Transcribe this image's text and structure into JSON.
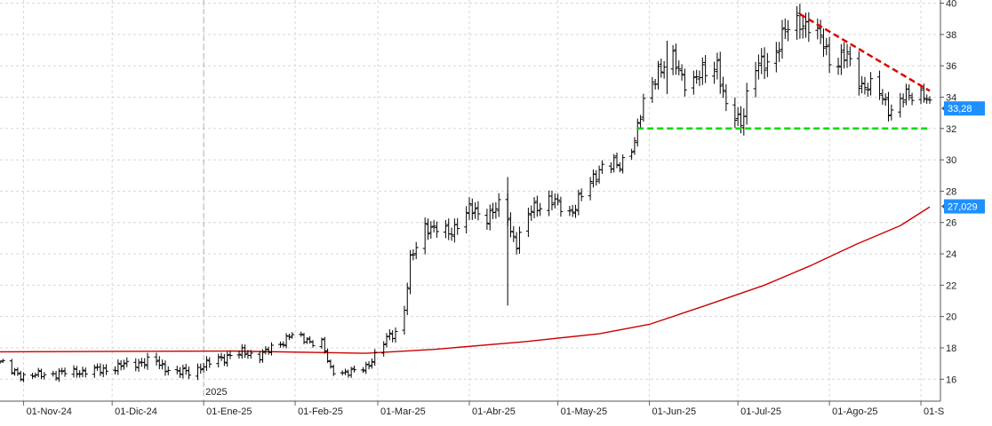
{
  "chart_data": {
    "type": "ohlc",
    "x_range": [
      "2024-10-24",
      "2025-09-04"
    ],
    "year_marker": "2025",
    "x_ticks": [
      {
        "date": "2024-11-01",
        "label": "01-Nov-24"
      },
      {
        "date": "2024-12-01",
        "label": "01-Dic-24"
      },
      {
        "date": "2025-01-01",
        "label": "01-Ene-25"
      },
      {
        "date": "2025-02-01",
        "label": "01-Feb-25"
      },
      {
        "date": "2025-03-01",
        "label": "01-Mar-25"
      },
      {
        "date": "2025-04-01",
        "label": "01-Abr-25"
      },
      {
        "date": "2025-05-01",
        "label": "01-May-25"
      },
      {
        "date": "2025-06-01",
        "label": "01-Jun-25"
      },
      {
        "date": "2025-07-01",
        "label": "01-Jul-25"
      },
      {
        "date": "2025-08-01",
        "label": "01-Ago-25"
      },
      {
        "date": "2025-09-01",
        "label": "01-S"
      }
    ],
    "y_ticks": [
      16,
      18,
      20,
      22,
      24,
      26,
      28,
      30,
      32,
      34,
      36,
      38,
      40
    ],
    "ylim": [
      14.6,
      40.2
    ],
    "grid": true,
    "price_series": {
      "color": "#000000",
      "anchors": [
        [
          "2024-10-24",
          17.1
        ],
        [
          "2024-10-28",
          16.5
        ],
        [
          "2024-11-01",
          16.2
        ],
        [
          "2024-11-15",
          16.4
        ],
        [
          "2024-11-28",
          16.6
        ],
        [
          "2024-12-05",
          16.9
        ],
        [
          "2024-12-15",
          17.2
        ],
        [
          "2024-12-22",
          16.4
        ],
        [
          "2024-12-28",
          16.5
        ],
        [
          "2025-01-06",
          17.3
        ],
        [
          "2025-01-14",
          17.7
        ],
        [
          "2025-01-20",
          17.5
        ],
        [
          "2025-01-27",
          18.3
        ],
        [
          "2025-01-30",
          18.8
        ],
        [
          "2025-02-05",
          18.5
        ],
        [
          "2025-02-10",
          18.3
        ],
        [
          "2025-02-13",
          16.6
        ],
        [
          "2025-02-20",
          16.4
        ],
        [
          "2025-02-25",
          16.8
        ],
        [
          "2025-02-28",
          17.5
        ],
        [
          "2025-03-05",
          18.8
        ],
        [
          "2025-03-08",
          19.1
        ],
        [
          "2025-03-10",
          20.5
        ],
        [
          "2025-03-12",
          23.5
        ],
        [
          "2025-03-17",
          25.8
        ],
        [
          "2025-03-25",
          25.3
        ],
        [
          "2025-04-01",
          26.8
        ],
        [
          "2025-04-07",
          26.4
        ],
        [
          "2025-04-13",
          27.3
        ],
        [
          "2025-04-15",
          25.5
        ],
        [
          "2025-04-17",
          24.7
        ],
        [
          "2025-04-22",
          26.8
        ],
        [
          "2025-04-28",
          27.5
        ],
        [
          "2025-05-05",
          26.6
        ],
        [
          "2025-05-12",
          28.5
        ],
        [
          "2025-05-16",
          29.7
        ],
        [
          "2025-05-22",
          29.6
        ],
        [
          "2025-05-27",
          31.3
        ],
        [
          "2025-05-30",
          33.5
        ],
        [
          "2025-06-04",
          35.8
        ],
        [
          "2025-06-09",
          36.3
        ],
        [
          "2025-06-14",
          34.8
        ],
        [
          "2025-06-20",
          35.6
        ],
        [
          "2025-06-24",
          36.2
        ],
        [
          "2025-06-27",
          33.2
        ],
        [
          "2025-07-02",
          32.4
        ],
        [
          "2025-07-06",
          35.8
        ],
        [
          "2025-07-12",
          36.3
        ],
        [
          "2025-07-17",
          38.2
        ],
        [
          "2025-07-22",
          38.9
        ],
        [
          "2025-07-26",
          38.3
        ],
        [
          "2025-07-30",
          37.5
        ],
        [
          "2025-08-02",
          36.0
        ],
        [
          "2025-08-07",
          36.6
        ],
        [
          "2025-08-12",
          34.8
        ],
        [
          "2025-08-18",
          34.3
        ],
        [
          "2025-08-22",
          33.1
        ],
        [
          "2025-08-28",
          34.2
        ],
        [
          "2025-09-02",
          34.3
        ],
        [
          "2025-09-04",
          33.3
        ]
      ],
      "spikes": [
        {
          "date": "2025-04-14",
          "high": 28.9,
          "low": 20.7
        },
        {
          "date": "2025-06-07",
          "high": 37.6,
          "low": 34.2
        }
      ],
      "last_value_label": "33,28",
      "last_value": 33.28,
      "label_color": "#1e90ff"
    },
    "moving_average": {
      "color": "#cc0000",
      "anchors": [
        [
          "2024-10-24",
          17.75
        ],
        [
          "2025-01-10",
          17.8
        ],
        [
          "2025-02-25",
          17.65
        ],
        [
          "2025-03-20",
          17.9
        ],
        [
          "2025-04-20",
          18.4
        ],
        [
          "2025-05-15",
          18.9
        ],
        [
          "2025-06-01",
          19.5
        ],
        [
          "2025-06-20",
          20.7
        ],
        [
          "2025-07-10",
          22.0
        ],
        [
          "2025-07-25",
          23.2
        ],
        [
          "2025-08-10",
          24.6
        ],
        [
          "2025-08-25",
          25.8
        ],
        [
          "2025-09-04",
          27.0
        ]
      ],
      "last_value_label": "27,029",
      "last_value": 27.029,
      "label_color": "#1e90ff"
    },
    "support_line": {
      "color": "#00dd00",
      "style": "dashed",
      "from": "2025-05-28",
      "to": "2025-09-04",
      "value": 32.0
    },
    "resistance_line": {
      "color": "#dd0000",
      "style": "dashed",
      "from": [
        "2025-07-22",
        39.3
      ],
      "to": [
        "2025-09-04",
        34.4
      ]
    }
  }
}
